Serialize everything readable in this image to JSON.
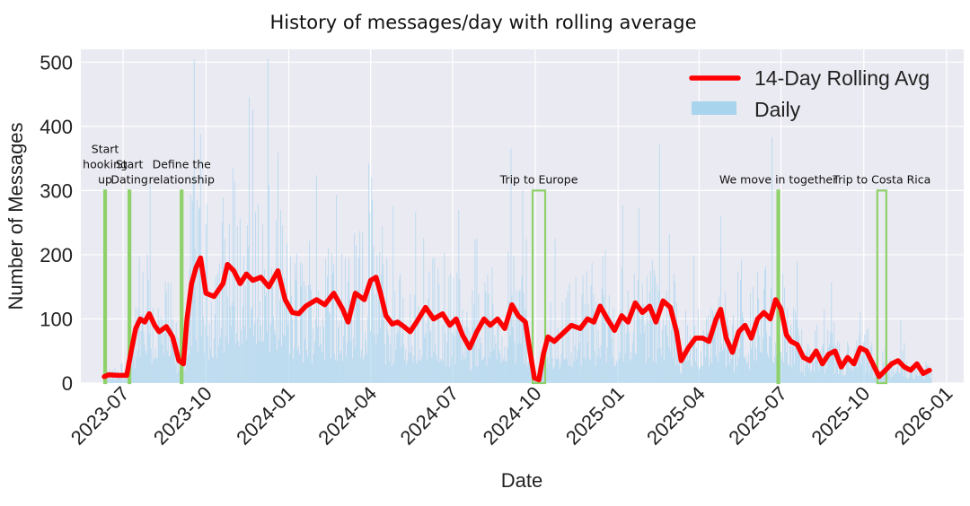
{
  "chart_data": {
    "type": "bar+line",
    "title": "History of messages/day with rolling average",
    "xlabel": "Date",
    "ylabel": "Number of Messages",
    "ylim": [
      0,
      520
    ],
    "yticks": [
      0,
      100,
      200,
      300,
      400,
      500
    ],
    "xlim": [
      "2023-05-15",
      "2026-01-20"
    ],
    "xticks": [
      "2023-07",
      "2023-10",
      "2024-01",
      "2024-04",
      "2024-07",
      "2024-10",
      "2025-01",
      "2025-04",
      "2025-07",
      "2025-10",
      "2026-01"
    ],
    "grid": true,
    "legend": {
      "position": "top-right",
      "entries": [
        {
          "label": "14-Day Rolling Avg",
          "color": "#ff0000",
          "kind": "line"
        },
        {
          "label": "Daily",
          "color": "#a8d4ee",
          "kind": "bar"
        }
      ]
    },
    "colors": {
      "background": "#eaeaf2",
      "grid": "#ffffff",
      "daily": "#a8d4ee",
      "rolling": "#ff0000",
      "event": "#8fd16a"
    },
    "series": [
      {
        "name": "14-Day Rolling Avg",
        "points": [
          [
            "2023-06-10",
            10
          ],
          [
            "2023-06-15",
            13
          ],
          [
            "2023-06-25",
            12
          ],
          [
            "2023-07-05",
            12
          ],
          [
            "2023-07-10",
            50
          ],
          [
            "2023-07-15",
            85
          ],
          [
            "2023-07-20",
            100
          ],
          [
            "2023-07-25",
            95
          ],
          [
            "2023-07-30",
            108
          ],
          [
            "2023-08-05",
            90
          ],
          [
            "2023-08-10",
            80
          ],
          [
            "2023-08-18",
            88
          ],
          [
            "2023-08-25",
            72
          ],
          [
            "2023-09-01",
            35
          ],
          [
            "2023-09-06",
            30
          ],
          [
            "2023-09-10",
            100
          ],
          [
            "2023-09-15",
            155
          ],
          [
            "2023-09-20",
            180
          ],
          [
            "2023-09-25",
            195
          ],
          [
            "2023-10-01",
            140
          ],
          [
            "2023-10-10",
            135
          ],
          [
            "2023-10-20",
            155
          ],
          [
            "2023-10-25",
            185
          ],
          [
            "2023-11-01",
            175
          ],
          [
            "2023-11-08",
            155
          ],
          [
            "2023-11-15",
            170
          ],
          [
            "2023-11-22",
            160
          ],
          [
            "2023-12-01",
            165
          ],
          [
            "2023-12-10",
            150
          ],
          [
            "2023-12-20",
            175
          ],
          [
            "2023-12-28",
            130
          ],
          [
            "2024-01-05",
            110
          ],
          [
            "2024-01-12",
            108
          ],
          [
            "2024-01-20",
            120
          ],
          [
            "2024-02-01",
            130
          ],
          [
            "2024-02-10",
            122
          ],
          [
            "2024-02-20",
            140
          ],
          [
            "2024-03-01",
            115
          ],
          [
            "2024-03-07",
            95
          ],
          [
            "2024-03-15",
            140
          ],
          [
            "2024-03-25",
            130
          ],
          [
            "2024-04-01",
            160
          ],
          [
            "2024-04-07",
            165
          ],
          [
            "2024-04-12",
            140
          ],
          [
            "2024-04-18",
            105
          ],
          [
            "2024-04-25",
            92
          ],
          [
            "2024-05-01",
            95
          ],
          [
            "2024-05-08",
            88
          ],
          [
            "2024-05-15",
            80
          ],
          [
            "2024-05-22",
            95
          ],
          [
            "2024-06-01",
            118
          ],
          [
            "2024-06-10",
            100
          ],
          [
            "2024-06-20",
            108
          ],
          [
            "2024-06-28",
            90
          ],
          [
            "2024-07-05",
            100
          ],
          [
            "2024-07-12",
            75
          ],
          [
            "2024-07-20",
            55
          ],
          [
            "2024-07-28",
            80
          ],
          [
            "2024-08-05",
            100
          ],
          [
            "2024-08-12",
            90
          ],
          [
            "2024-08-20",
            100
          ],
          [
            "2024-08-28",
            85
          ],
          [
            "2024-09-05",
            122
          ],
          [
            "2024-09-12",
            105
          ],
          [
            "2024-09-20",
            95
          ],
          [
            "2024-09-25",
            50
          ],
          [
            "2024-09-30",
            8
          ],
          [
            "2024-10-05",
            5
          ],
          [
            "2024-10-10",
            45
          ],
          [
            "2024-10-15",
            72
          ],
          [
            "2024-10-22",
            65
          ],
          [
            "2024-11-01",
            78
          ],
          [
            "2024-11-10",
            90
          ],
          [
            "2024-11-20",
            85
          ],
          [
            "2024-11-28",
            100
          ],
          [
            "2024-12-05",
            95
          ],
          [
            "2024-12-12",
            120
          ],
          [
            "2024-12-20",
            100
          ],
          [
            "2024-12-28",
            82
          ],
          [
            "2025-01-05",
            105
          ],
          [
            "2025-01-12",
            95
          ],
          [
            "2025-01-20",
            125
          ],
          [
            "2025-01-28",
            110
          ],
          [
            "2025-02-05",
            120
          ],
          [
            "2025-02-12",
            95
          ],
          [
            "2025-02-20",
            128
          ],
          [
            "2025-02-28",
            118
          ],
          [
            "2025-03-07",
            80
          ],
          [
            "2025-03-12",
            35
          ],
          [
            "2025-03-20",
            55
          ],
          [
            "2025-03-28",
            70
          ],
          [
            "2025-04-05",
            70
          ],
          [
            "2025-04-12",
            65
          ],
          [
            "2025-04-20",
            100
          ],
          [
            "2025-04-25",
            115
          ],
          [
            "2025-05-01",
            70
          ],
          [
            "2025-05-08",
            48
          ],
          [
            "2025-05-15",
            80
          ],
          [
            "2025-05-22",
            90
          ],
          [
            "2025-05-29",
            70
          ],
          [
            "2025-06-05",
            100
          ],
          [
            "2025-06-12",
            110
          ],
          [
            "2025-06-19",
            100
          ],
          [
            "2025-06-25",
            130
          ],
          [
            "2025-07-01",
            115
          ],
          [
            "2025-07-07",
            75
          ],
          [
            "2025-07-12",
            65
          ],
          [
            "2025-07-19",
            60
          ],
          [
            "2025-07-26",
            40
          ],
          [
            "2025-08-02",
            35
          ],
          [
            "2025-08-09",
            50
          ],
          [
            "2025-08-16",
            30
          ],
          [
            "2025-08-23",
            45
          ],
          [
            "2025-08-30",
            50
          ],
          [
            "2025-09-06",
            25
          ],
          [
            "2025-09-13",
            40
          ],
          [
            "2025-09-20",
            30
          ],
          [
            "2025-09-27",
            55
          ],
          [
            "2025-10-04",
            50
          ],
          [
            "2025-10-11",
            30
          ],
          [
            "2025-10-18",
            10
          ],
          [
            "2025-10-25",
            20
          ],
          [
            "2025-11-01",
            30
          ],
          [
            "2025-11-08",
            35
          ],
          [
            "2025-11-15",
            25
          ],
          [
            "2025-11-22",
            20
          ],
          [
            "2025-11-29",
            30
          ],
          [
            "2025-12-06",
            15
          ],
          [
            "2025-12-13",
            20
          ]
        ]
      },
      {
        "name": "Daily",
        "start": "2023-06-10",
        "end": "2025-12-15",
        "peak": {
          "date": "2023-09-18",
          "value": 505
        }
      }
    ],
    "annotations": [
      {
        "lines": [
          "Start",
          "hooking",
          "up"
        ],
        "start": "2023-06-10",
        "end": "2023-06-12",
        "height": 300
      },
      {
        "lines": [
          "Start",
          "Dating"
        ],
        "start": "2023-07-07",
        "end": "2023-07-09",
        "height": 300
      },
      {
        "lines": [
          "Define the",
          "relationship"
        ],
        "start": "2023-09-03",
        "end": "2023-09-05",
        "height": 300
      },
      {
        "lines": [
          "Trip to Europe"
        ],
        "start": "2024-09-28",
        "end": "2024-10-12",
        "height": 300
      },
      {
        "lines": [
          "We move in together"
        ],
        "start": "2025-06-27",
        "end": "2025-06-29",
        "height": 300
      },
      {
        "lines": [
          "Trip to Costa Rica"
        ],
        "start": "2025-10-16",
        "end": "2025-10-26",
        "height": 300
      }
    ]
  }
}
